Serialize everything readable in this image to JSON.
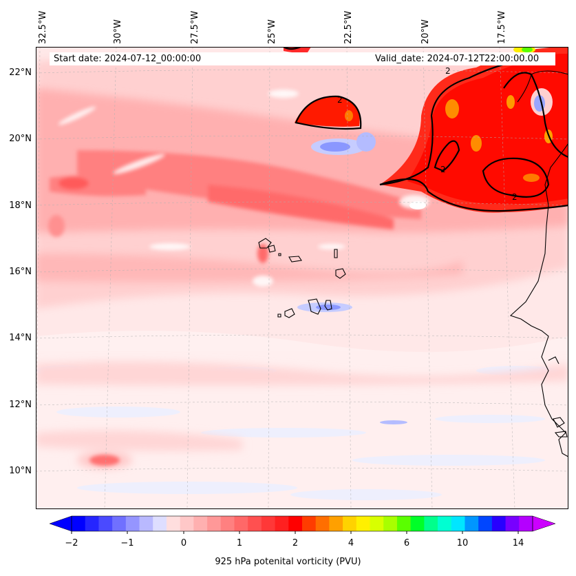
{
  "map": {
    "lon_labels": [
      "32.5°W",
      "30°W",
      "27.5°W",
      "25°W",
      "22.5°W",
      "20°W",
      "17.5°W"
    ],
    "lat_labels": [
      "22°N",
      "20°N",
      "18°N",
      "16°N",
      "14°N",
      "12°N",
      "10°N"
    ],
    "start_date": "Start date: 2024-07-12_00:00:00",
    "valid_date": "Valid_date: 2024-07-12T22:00:00.00",
    "contour_labels": [
      "2",
      "2",
      "2",
      "2"
    ],
    "colors": {
      "background": "#ffe8e8",
      "light_blue": "#eef0ff",
      "pink_light": "#ffd0d0",
      "pink": "#ffb0b0",
      "red_light": "#ff8080",
      "red_mid": "#ff5a5a",
      "red": "#ff2a2a",
      "red_deep": "#ff0a00",
      "orange": "#ff8c00",
      "blue_patch": "#9aa6ff",
      "green": "#5aff00",
      "yellow": "#ffee00",
      "coast": "#000000"
    }
  },
  "colorbar": {
    "title": "925 hPa potenital vorticity (PVU)",
    "tick_labels": [
      "−2",
      "−1",
      "0",
      "1",
      "2",
      "4",
      "6",
      "10",
      "14"
    ],
    "colors": [
      "#0000ff",
      "#2525ff",
      "#4a4aff",
      "#7070ff",
      "#9595ff",
      "#b9b9ff",
      "#dedeff",
      "#ffdede",
      "#ffc8c8",
      "#ffb0b0",
      "#ff9898",
      "#ff8080",
      "#ff6868",
      "#ff5050",
      "#ff3838",
      "#ff2020",
      "#ff0000",
      "#ff3c00",
      "#ff6e00",
      "#ffa000",
      "#ffd200",
      "#fff000",
      "#d8ff00",
      "#a8ff00",
      "#5aff00",
      "#00ff28",
      "#00ff8c",
      "#00ffd2",
      "#00e6ff",
      "#0096ff",
      "#0046ff",
      "#2800ff",
      "#7800ff",
      "#b400ff"
    ],
    "under_color": "#0000ff",
    "over_color": "#cc00ff"
  }
}
